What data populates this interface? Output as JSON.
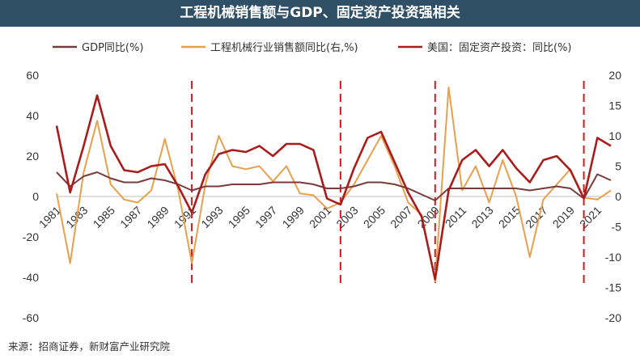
{
  "header": {
    "title": "工程机械销售额与GDP、固定资产投资强相关"
  },
  "footer": {
    "source": "来源：招商证券，新财富产业研究院"
  },
  "chart_data": {
    "type": "line",
    "title": "工程机械销售额与GDP、固定资产投资强相关",
    "x": [
      1981,
      1982,
      1983,
      1984,
      1985,
      1986,
      1987,
      1988,
      1989,
      1990,
      1991,
      1992,
      1993,
      1994,
      1995,
      1996,
      1997,
      1998,
      1999,
      2000,
      2001,
      2002,
      2003,
      2004,
      2005,
      2006,
      2007,
      2008,
      2009,
      2010,
      2011,
      2012,
      2013,
      2014,
      2015,
      2016,
      2017,
      2018,
      2019,
      2020,
      2021,
      2022
    ],
    "x_tick_labels": [
      "1981",
      "1983",
      "1985",
      "1987",
      "1989",
      "1991",
      "1993",
      "1995",
      "1997",
      "1999",
      "2001",
      "2003",
      "2005",
      "2007",
      "2009",
      "2011",
      "2013",
      "2015",
      "2017",
      "2019",
      "2021"
    ],
    "y_left": {
      "range": [
        -60,
        60
      ],
      "ticks": [
        "-60",
        "-40",
        "-20",
        "0",
        "20",
        "40",
        "60"
      ]
    },
    "y_right": {
      "range": [
        -20,
        20
      ],
      "ticks": [
        "-20",
        "-15",
        "-10",
        "-5",
        "0",
        "5",
        "10",
        "15",
        "20"
      ]
    },
    "legend_position": "top",
    "grid": false,
    "series": [
      {
        "name": "GDP同比(%)",
        "axis": "left",
        "color": "#7a3b3b",
        "values": [
          12,
          5,
          10,
          12,
          9,
          7,
          7,
          9,
          8,
          6,
          3,
          5,
          5,
          6,
          6,
          6,
          7,
          7,
          7,
          6,
          4,
          4,
          5,
          7,
          7,
          6,
          4,
          1,
          -2,
          4,
          4,
          4,
          4,
          4,
          4,
          3,
          4,
          5,
          4,
          -1,
          11,
          8
        ]
      },
      {
        "name": "工程机械行业销售额同比(右,%)",
        "axis": "right",
        "color": "#e8a04c",
        "values": [
          0.5,
          -11,
          4,
          12.5,
          2,
          -0.5,
          -1,
          1,
          9.5,
          1,
          -11,
          2,
          10,
          5,
          4.5,
          5,
          2.5,
          5,
          0.5,
          0.2,
          -2,
          -1,
          2,
          6,
          10,
          5,
          -1,
          -3,
          -14,
          18,
          1,
          5,
          -1,
          6,
          0,
          -10,
          -0.5,
          2,
          4.5,
          -0.2,
          -0.5,
          1
        ]
      },
      {
        "name": "美国：固定资产投资：同比(%)",
        "axis": "left",
        "color": "#a91c1c",
        "values": [
          35,
          2,
          25,
          50,
          25,
          13,
          12,
          15,
          16,
          5,
          -8,
          11,
          21,
          23,
          22,
          25,
          20,
          26,
          26,
          23,
          -1,
          -4,
          14,
          29,
          32,
          17,
          2,
          -10,
          -41,
          3,
          18,
          23,
          15,
          23,
          14,
          7,
          18,
          20,
          13,
          -1,
          29,
          25
        ]
      }
    ],
    "markers": {
      "style": "dashed vertical line",
      "color": "#d7191c",
      "at_x": [
        1991,
        2002,
        2009,
        2020
      ]
    }
  }
}
